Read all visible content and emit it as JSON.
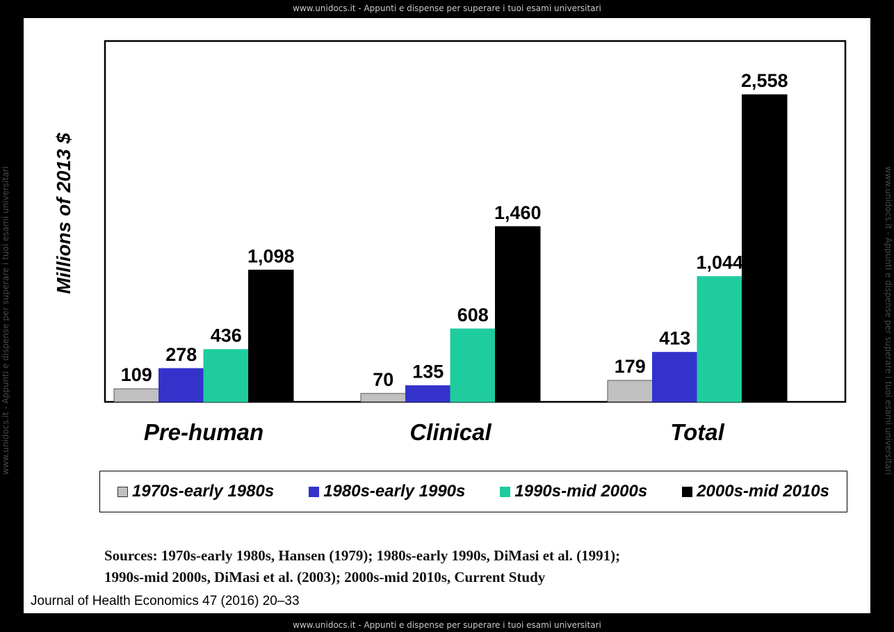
{
  "watermark": {
    "top": "www.unidocs.it - Appunti e dispense per superare i tuoi esami universitari",
    "bottom": "www.unidocs.it - Appunti e dispense per superare i tuoi esami universitari",
    "left": "www.unidocs.it - Appunti e dispense per superare i tuoi esami universitari",
    "right": "www.unidocs.it - Appunti e dispense per superare i tuoi esami universitari"
  },
  "chart_data": {
    "type": "bar",
    "title": "",
    "xlabel": "",
    "ylabel": "Millions of 2013 $",
    "categories": [
      "Pre-human",
      "Clinical",
      "Total"
    ],
    "ylim": [
      0,
      2800
    ],
    "grid": false,
    "legend_position": "bottom",
    "series": [
      {
        "name": "1970s-early 1980s",
        "color": "#c0c0c0",
        "values": [
          109,
          70,
          179
        ],
        "labels": [
          "109",
          "70",
          "179"
        ]
      },
      {
        "name": "1980s-early 1990s",
        "color": "#3333cc",
        "values": [
          278,
          135,
          413
        ],
        "labels": [
          "278",
          "135",
          "413"
        ]
      },
      {
        "name": "1990s-mid 2000s",
        "color": "#1fcc9e",
        "values": [
          436,
          608,
          1044
        ],
        "labels": [
          "436",
          "608",
          "1,044"
        ]
      },
      {
        "name": "2000s-mid 2010s",
        "color": "#000000",
        "values": [
          1098,
          1460,
          2558
        ],
        "labels": [
          "1,098",
          "1,460",
          "2,558"
        ]
      }
    ]
  },
  "sources": {
    "line1": "Sources:  1970s-early 1980s, Hansen (1979); 1980s-early 1990s, DiMasi et al. (1991);",
    "line2": "1990s-mid 2000s,  DiMasi  et al.  (2003); 2000s-mid 2010s, Current Study"
  },
  "citation": "Journal of Health Economics 47 (2016) 20–33"
}
